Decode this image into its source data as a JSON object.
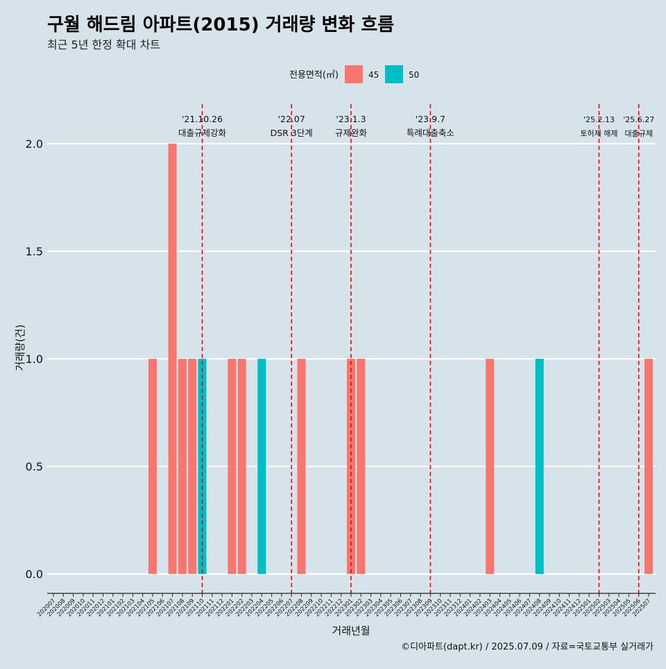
{
  "title": "구월 해드림 아파트(2015) 거래량 변화 흐름",
  "subtitle": "최근 5년 한정 확대 차트",
  "caption": "©디아파트(dapt.kr) / 2025.07.09 / 자료=국토교통부 실거래가",
  "chart_data": {
    "type": "bar",
    "title": "구월 해드림 아파트(2015) 거래량 변화 흐름",
    "xlabel": "거래년월",
    "ylabel": "거래량(건)",
    "ylim": [
      -0.09,
      2.2
    ],
    "yticks": [
      0.0,
      0.5,
      1.0,
      1.5,
      2.0
    ],
    "ytick_labels": [
      "0.0",
      "0.5",
      "1.0",
      "1.5",
      "2.0"
    ],
    "grid": true,
    "legend": {
      "title": "전용면적(㎡)",
      "position": "top",
      "entries": [
        {
          "name": "45",
          "color": "#f8766d"
        },
        {
          "name": "50",
          "color": "#00bfc4"
        }
      ]
    },
    "categories": [
      "202007",
      "202008",
      "202009",
      "202010",
      "202011",
      "202012",
      "202101",
      "202102",
      "202103",
      "202104",
      "202105",
      "202106",
      "202107",
      "202108",
      "202109",
      "202110",
      "202111",
      "202112",
      "202201",
      "202202",
      "202203",
      "202204",
      "202205",
      "202206",
      "202207",
      "202208",
      "202209",
      "202210",
      "202211",
      "202212",
      "202301",
      "202302",
      "202303",
      "202304",
      "202305",
      "202306",
      "202307",
      "202308",
      "202309",
      "202310",
      "202311",
      "202312",
      "202401",
      "202402",
      "202403",
      "202404",
      "202405",
      "202406",
      "202407",
      "202408",
      "202409",
      "202410",
      "202411",
      "202412",
      "202501",
      "202502",
      "202503",
      "202504",
      "202505",
      "202506",
      "202507"
    ],
    "series": [
      {
        "name": "45",
        "color": "#f8766d",
        "values": [
          0,
          0,
          0,
          0,
          0,
          0,
          0,
          0,
          0,
          0,
          1,
          0,
          2,
          1,
          1,
          0,
          0,
          0,
          1,
          1,
          0,
          0,
          0,
          0,
          0,
          1,
          0,
          0,
          0,
          0,
          1,
          1,
          0,
          0,
          0,
          0,
          0,
          0,
          0,
          0,
          0,
          0,
          0,
          0,
          1,
          0,
          0,
          0,
          0,
          0,
          0,
          0,
          0,
          0,
          0,
          0,
          0,
          0,
          0,
          0,
          1
        ]
      },
      {
        "name": "50",
        "color": "#00bfc4",
        "values": [
          0,
          0,
          0,
          0,
          0,
          0,
          0,
          0,
          0,
          0,
          0,
          0,
          0,
          0,
          0,
          1,
          0,
          0,
          0,
          0,
          0,
          1,
          0,
          0,
          0,
          0,
          0,
          0,
          0,
          0,
          0,
          0,
          0,
          0,
          0,
          0,
          0,
          0,
          0,
          0,
          0,
          0,
          0,
          0,
          0,
          0,
          0,
          0,
          0,
          1,
          0,
          0,
          0,
          0,
          0,
          0,
          0,
          0,
          0,
          0,
          0
        ]
      }
    ],
    "annotations": [
      {
        "x_month": "202110",
        "date": "'21.10.26",
        "label": "대출규제강화"
      },
      {
        "x_month": "202207",
        "date": "'22.07",
        "label": "DSR 3단계"
      },
      {
        "x_month": "202301",
        "date": "'23.1.3",
        "label": "규제완화"
      },
      {
        "x_month": "202309",
        "date": "'23.9.7",
        "label": "특례대출축소"
      },
      {
        "x_month": "202502",
        "date": "'25.2.13",
        "label": "토허제 해제"
      },
      {
        "x_month": "202506",
        "date": "'25.6.27",
        "label": "대출규제"
      }
    ]
  }
}
